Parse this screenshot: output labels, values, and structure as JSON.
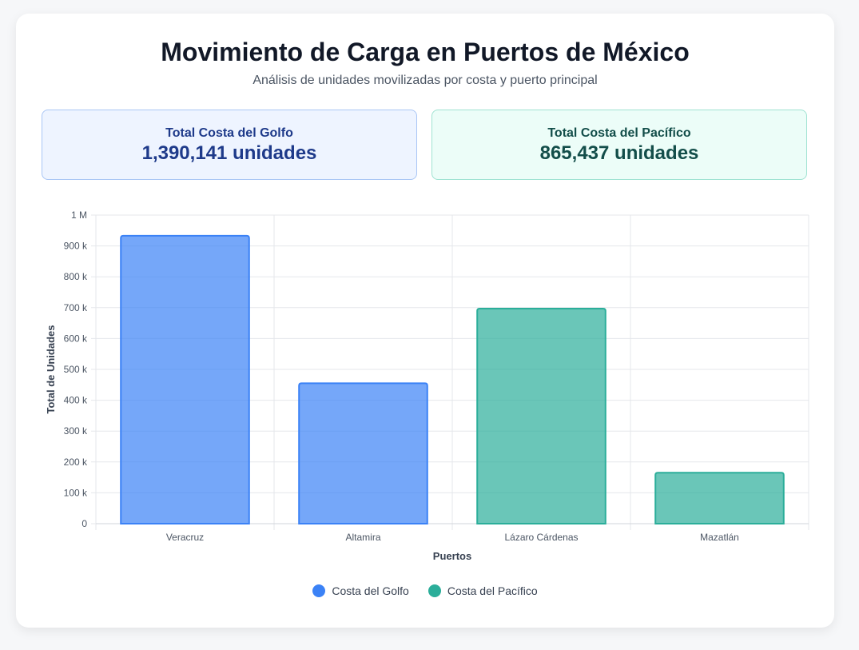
{
  "header": {
    "title": "Movimiento de Carga en Puertos de México",
    "subtitle": "Análisis de unidades movilizadas por costa y puerto principal"
  },
  "totals": {
    "gulf": {
      "label": "Total Costa del Golfo",
      "value": "1,390,141 unidades"
    },
    "pacific": {
      "label": "Total Costa del Pacífico",
      "value": "865,437 unidades"
    }
  },
  "chart_data": {
    "type": "bar",
    "categories": [
      "Veracruz",
      "Altamira",
      "Lázaro Cárdenas",
      "Mazatlán"
    ],
    "series": [
      {
        "name": "Costa del Golfo",
        "color": "#3b82f6",
        "values": [
          933000,
          455000,
          null,
          null
        ]
      },
      {
        "name": "Costa del Pacífico",
        "color": "#2bae9a",
        "values": [
          null,
          null,
          697000,
          165000
        ]
      }
    ],
    "xlabel": "Puertos",
    "ylabel": "Total de Unidades",
    "ylim": [
      0,
      1000000
    ],
    "yticks": [
      "0",
      "100 k",
      "200 k",
      "300 k",
      "400 k",
      "500 k",
      "600 k",
      "700 k",
      "800 k",
      "900 k",
      "1 M"
    ],
    "grid": true,
    "legend_position": "bottom"
  }
}
